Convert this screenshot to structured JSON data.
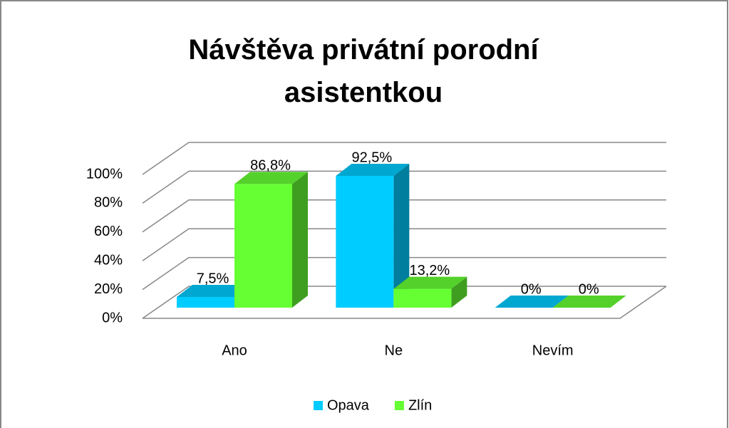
{
  "chart_data": {
    "type": "bar3d",
    "title": "Návštěva privátní porodní asistentkou",
    "categories": [
      "Ano",
      "Ne",
      "Nevím"
    ],
    "series": [
      {
        "name": "Opava",
        "color": "#00ccff",
        "values": [
          7.5,
          92.5,
          0
        ],
        "value_labels": [
          "7,5%",
          "92,5%",
          "0%"
        ]
      },
      {
        "name": "Zlín",
        "color": "#66ff33",
        "values": [
          86.8,
          13.2,
          0
        ],
        "value_labels": [
          "86,8%",
          "13,2%",
          "0%"
        ]
      }
    ],
    "ylim": [
      0,
      100
    ],
    "yticks": [
      {
        "value": 0,
        "label": "0%"
      },
      {
        "value": 20,
        "label": "20%"
      },
      {
        "value": 40,
        "label": "40%"
      },
      {
        "value": 60,
        "label": "60%"
      },
      {
        "value": 80,
        "label": "80%"
      },
      {
        "value": 100,
        "label": "100%"
      }
    ],
    "grid": true,
    "legend": "bottom"
  }
}
